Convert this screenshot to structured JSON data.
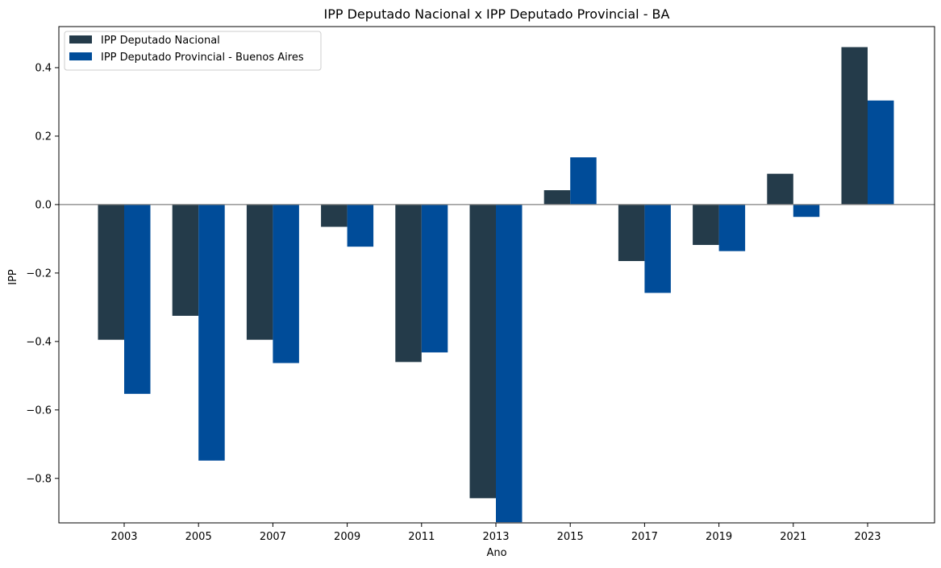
{
  "chart_data": {
    "type": "bar",
    "title": "IPP Deputado Nacional x IPP Deputado Provincial - BA",
    "xlabel": "Ano",
    "ylabel": "IPP",
    "categories": [
      "2003",
      "2005",
      "2007",
      "2009",
      "2011",
      "2013",
      "2015",
      "2017",
      "2019",
      "2021",
      "2023"
    ],
    "series": [
      {
        "name": "IPP Deputado Nacional",
        "color": "#243b4a",
        "values": [
          -0.395,
          -0.325,
          -0.395,
          -0.065,
          -0.46,
          -0.858,
          0.042,
          -0.165,
          -0.118,
          0.09,
          0.46
        ]
      },
      {
        "name": "IPP Deputado Provincial - Buenos Aires",
        "color": "#004c99",
        "values": [
          -0.553,
          -0.748,
          -0.463,
          -0.123,
          -0.432,
          -0.928,
          0.138,
          -0.258,
          -0.136,
          -0.036,
          0.304
        ]
      }
    ],
    "ylim": [
      -0.93,
      0.52
    ],
    "yticks": [
      0.4,
      0.2,
      0.0,
      -0.2,
      -0.4,
      -0.6,
      -0.8
    ],
    "ytick_labels": [
      "0.4",
      "0.2",
      "0.0",
      "−0.2",
      "−0.4",
      "−0.6",
      "−0.8"
    ],
    "zero_line_color": "#808080",
    "grid": false,
    "legend_position": "upper-left"
  }
}
